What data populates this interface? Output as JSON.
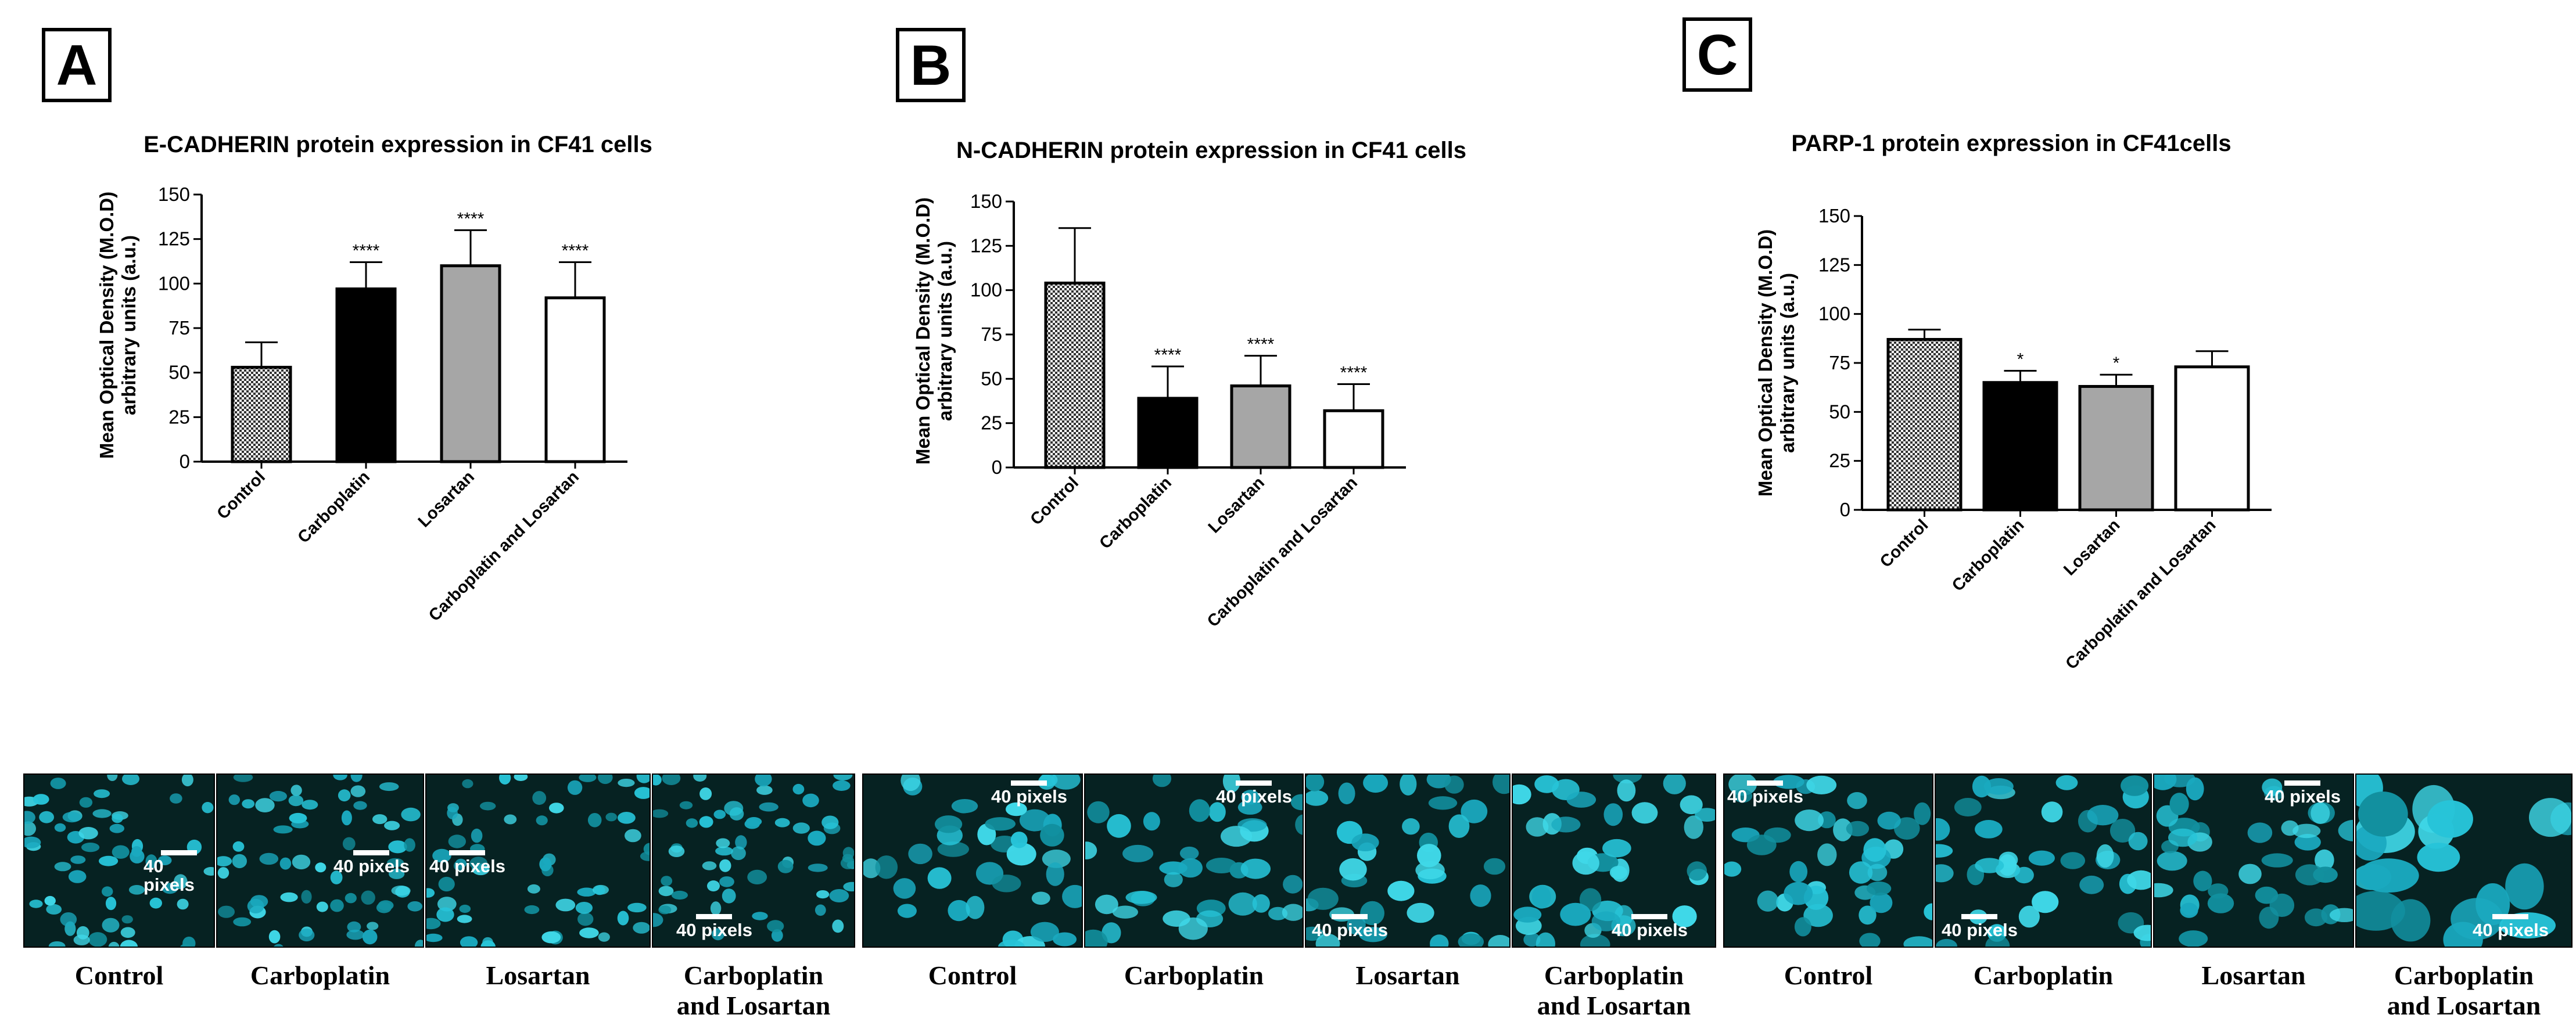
{
  "panels": {
    "a": {
      "letter": "A"
    },
    "b": {
      "letter": "B"
    },
    "c": {
      "letter": "C"
    }
  },
  "colors": {
    "control_fill": "checkered gray",
    "carboplatin_fill": "#000000",
    "losartan_fill": "#a6a6a6",
    "combo_fill": "#ffffff",
    "fluorescence": "#2fd0e0"
  },
  "chart_data": [
    {
      "type": "bar",
      "title": "E-CADHERIN protein expression in CF41 cells",
      "ylabel": "Mean Optical Density (M.O.D)\narbitrary units (a.u.)",
      "ylim": [
        0,
        150
      ],
      "yticks": [
        "0",
        "25",
        "50",
        "75",
        "100",
        "125",
        "150"
      ],
      "categories": [
        "Control",
        "Carboplatin",
        "Losartan",
        "Carboplatin and Losartan"
      ],
      "values": [
        53,
        97,
        110,
        92
      ],
      "error": [
        14,
        15,
        20,
        20
      ],
      "significance": [
        "",
        "****",
        "****",
        "****"
      ],
      "grid": false,
      "legend": "none"
    },
    {
      "type": "bar",
      "title": "N-CADHERIN protein expression in CF41 cells",
      "ylabel": "Mean Optical Density (M.O.D)\narbitrary units (a.u.)",
      "ylim": [
        0,
        150
      ],
      "yticks": [
        "0",
        "25",
        "50",
        "75",
        "100",
        "125",
        "150"
      ],
      "categories": [
        "Control",
        "Carboplatin",
        "Losartan",
        "Carboplatin and Losartan"
      ],
      "values": [
        104,
        39,
        46,
        32
      ],
      "error": [
        31,
        18,
        17,
        15
      ],
      "significance": [
        "",
        "****",
        "****",
        "****"
      ],
      "grid": false,
      "legend": "none"
    },
    {
      "type": "bar",
      "title": "PARP-1 protein expression in CF41cells",
      "ylabel": "Mean Optical Density (M.O.D)\narbitrary units (a.u.)",
      "ylim": [
        0,
        150
      ],
      "yticks": [
        "0",
        "25",
        "50",
        "75",
        "100",
        "125",
        "150"
      ],
      "categories": [
        "Control",
        "Carboplatin",
        "Losartan",
        "Carboplatin and Losartan"
      ],
      "values": [
        87,
        65,
        63,
        73
      ],
      "error": [
        5,
        6,
        6,
        8
      ],
      "significance": [
        "",
        "*",
        "*",
        ""
      ],
      "grid": false,
      "legend": "none"
    }
  ],
  "micrographs": {
    "scale_label": "40 pixels",
    "groups": [
      {
        "captions": [
          "Control",
          "Carboplatin",
          "Losartan",
          "Carboplatin\nand Losartan"
        ]
      },
      {
        "captions": [
          "Control",
          "Carboplatin",
          "Losartan",
          "Carboplatin\nand Losartan"
        ]
      },
      {
        "captions": [
          "Control",
          "Carboplatin",
          "Losartan",
          "Carboplatin\nand Losartan"
        ]
      }
    ]
  }
}
